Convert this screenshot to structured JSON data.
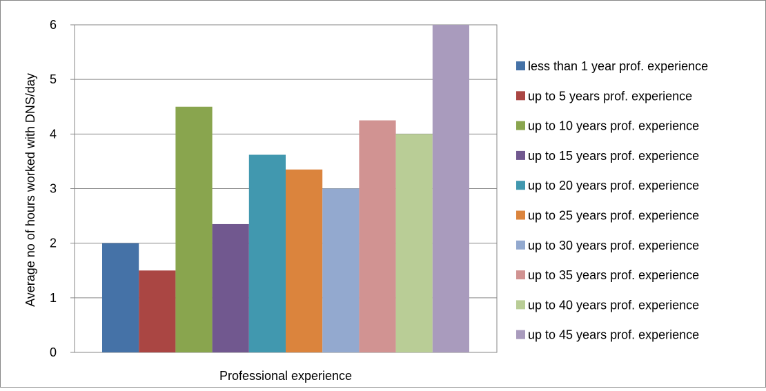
{
  "chart_data": {
    "type": "bar",
    "title": "",
    "xlabel": "Professional experience",
    "ylabel": "Average no of hours worked with DNS/day",
    "ylim": [
      0,
      6
    ],
    "yticks": [
      "0",
      "1",
      "2",
      "3",
      "4",
      "5",
      "6"
    ],
    "grid": true,
    "legend_position": "right",
    "categories": [
      "Professional experience"
    ],
    "series": [
      {
        "name": "less than 1 year prof. experience",
        "values": [
          2.0
        ],
        "color": "#4572A7"
      },
      {
        "name": "up to 5 years prof. experience",
        "values": [
          1.5
        ],
        "color": "#AA4643"
      },
      {
        "name": "up to 10 years prof. experience",
        "values": [
          4.5
        ],
        "color": "#89A54E"
      },
      {
        "name": "up to 15 years prof. experience",
        "values": [
          2.35
        ],
        "color": "#71588F"
      },
      {
        "name": "up to 20 years prof. experience",
        "values": [
          3.62
        ],
        "color": "#4198AF"
      },
      {
        "name": "up to 25 years prof. experience",
        "values": [
          3.35
        ],
        "color": "#DB843D"
      },
      {
        "name": "up to 30 years prof. experience",
        "values": [
          3.0
        ],
        "color": "#93A9CF"
      },
      {
        "name": "up to 35 years prof. experience",
        "values": [
          4.25
        ],
        "color": "#D19392"
      },
      {
        "name": "up to 40 years prof. experience",
        "values": [
          4.0
        ],
        "color": "#B9CD96"
      },
      {
        "name": "up to 45 years prof. experience",
        "values": [
          6.0
        ],
        "color": "#A99BBD"
      }
    ]
  }
}
